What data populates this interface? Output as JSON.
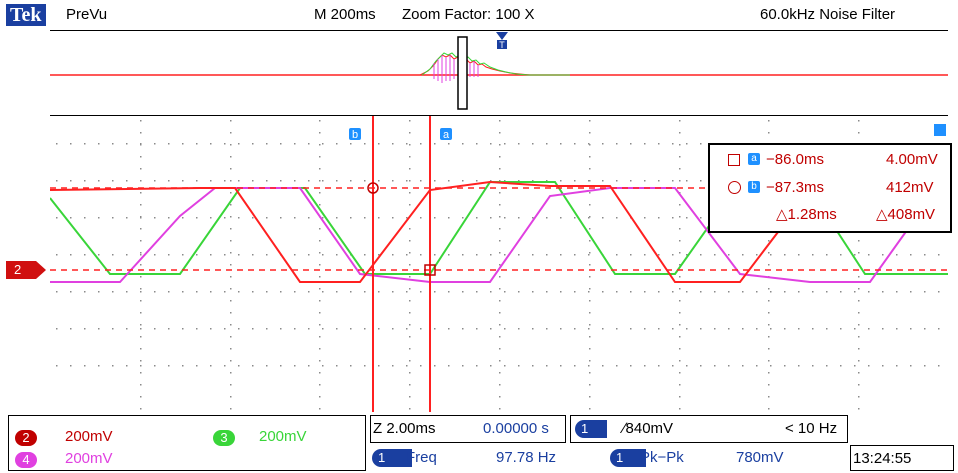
{
  "header": {
    "brand": "Tek",
    "mode": "PreVu",
    "timebase": "M 200ms",
    "zoom_factor": "Zoom Factor: 100 X",
    "filter": "60.0kHz  Noise Filter"
  },
  "cursors": {
    "a_label": "a",
    "b_label": "b",
    "row_a": {
      "time": "−86.0ms",
      "voltage": "4.00mV"
    },
    "row_b": {
      "time": "−87.3ms",
      "voltage": "412mV"
    },
    "delta": {
      "time": "△1.28ms",
      "voltage": "△408mV"
    }
  },
  "channel_marker": "2",
  "channels": [
    {
      "id": "2",
      "scale": "200mV",
      "color": "#c00000"
    },
    {
      "id": "3",
      "scale": "200mV",
      "color": "#39d539"
    },
    {
      "id": "4",
      "scale": "200mV",
      "color": "#e040e0"
    }
  ],
  "zoom": {
    "scale": "Z 2.00ms",
    "position": "0.00000 s"
  },
  "trigger": {
    "channel": "1",
    "level": "∕840mV",
    "freq": "< 10 Hz"
  },
  "measurements": [
    {
      "channel": "1",
      "name": "Freq",
      "value": "97.78 Hz"
    },
    {
      "channel": "1",
      "name": "Pk−Pk",
      "value": "780mV"
    }
  ],
  "clock": "13:24:55",
  "colors": {
    "accent_blue": "#1a3fa0",
    "ch2_red": "#ff2020",
    "ch3_green": "#39d539",
    "ch4_magenta": "#e040e0"
  }
}
